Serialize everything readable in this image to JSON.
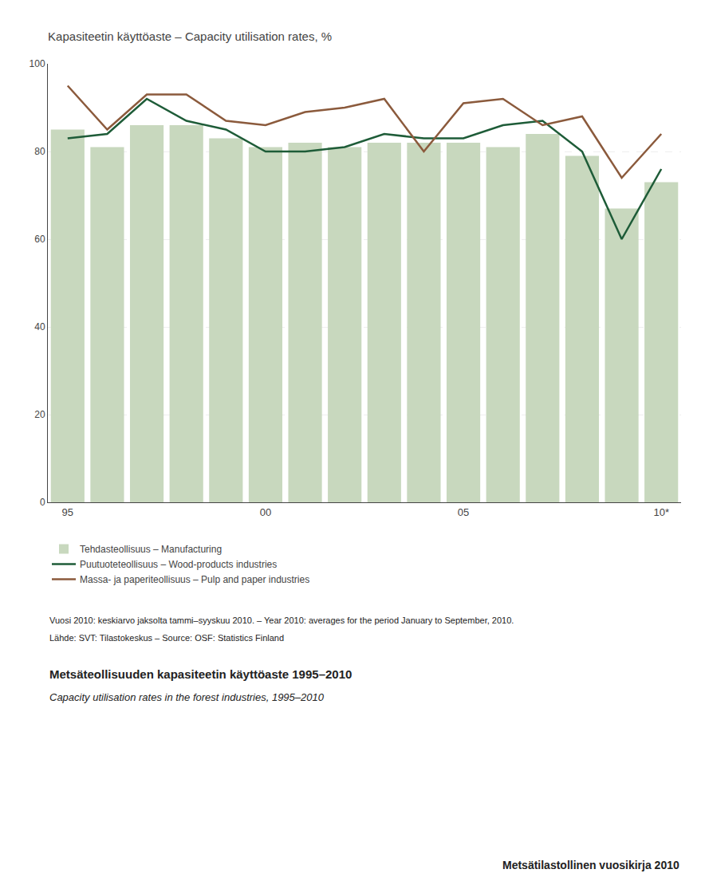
{
  "chart_data": {
    "type": "bar",
    "title": "Kapasiteetin käyttöaste – Capacity utilisation rates, %",
    "categories": [
      "95",
      null,
      null,
      null,
      null,
      "00",
      null,
      null,
      null,
      null,
      "05",
      null,
      null,
      null,
      null,
      "10*"
    ],
    "series": [
      {
        "name": "Tehdasteollisuus – Manufacturing",
        "type": "bar",
        "color": "#c8d8be",
        "values": [
          85,
          81,
          86,
          86,
          83,
          81,
          82,
          81,
          82,
          82,
          82,
          81,
          84,
          79,
          67,
          73
        ]
      },
      {
        "name": "Puutuoteteollisuus – Wood-products industries",
        "type": "line",
        "color": "#1e5c38",
        "values": [
          83,
          84,
          92,
          87,
          85,
          80,
          80,
          81,
          84,
          83,
          83,
          86,
          87,
          80,
          60,
          76
        ]
      },
      {
        "name": "Massa- ja paperiteollisuus – Pulp and paper industries",
        "type": "line",
        "color": "#8b5a3c",
        "values": [
          95,
          85,
          93,
          93,
          87,
          86,
          89,
          90,
          92,
          80,
          91,
          92,
          86,
          88,
          74,
          84
        ]
      }
    ],
    "ylim": [
      0,
      100
    ],
    "yticks": [
      0,
      20,
      40,
      60,
      80,
      100
    ],
    "grid": true,
    "legend": "lower left",
    "annotations": [
      "Vuosi 2010: keskiarvo jaksolta tammi–syyskuu 2010. – Year 2010: averages for the period January to September, 2010.",
      "Lähde: SVT: Tilastokeskus – Source: OSF: Statistics Finland",
      "Metsäteollisuuden kapasiteetin käyttöaste 1995–2010",
      "Capacity utilisation rates in the forest industries, 1995–2010",
      "Metsätilastollinen vuosikirja 2010"
    ]
  }
}
